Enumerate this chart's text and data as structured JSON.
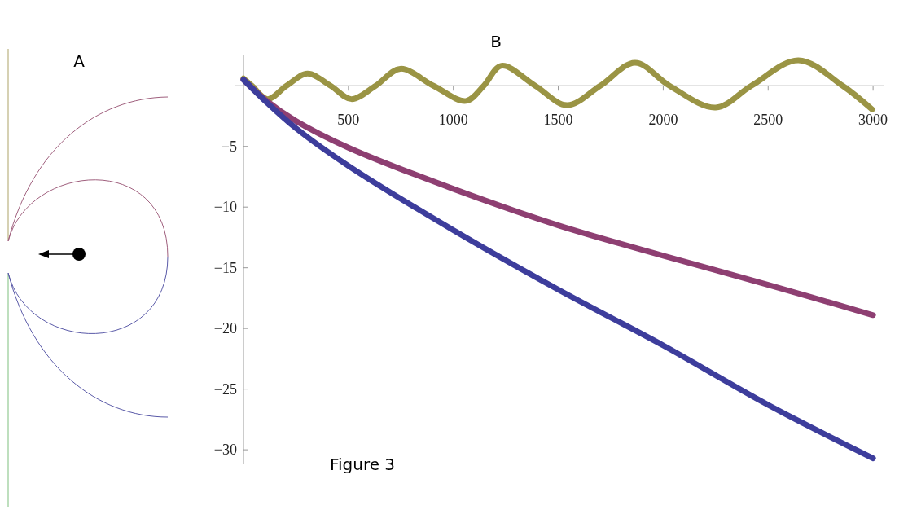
{
  "chart_data": {
    "type": "line",
    "title": "B",
    "annotations": [
      "A",
      "Figure 3"
    ],
    "xlim": [
      0,
      3050
    ],
    "ylim": [
      -31.2,
      2.5
    ],
    "xticks": [
      500,
      1000,
      1500,
      2000,
      2500,
      3000
    ],
    "yticks": [
      -5,
      -10,
      -15,
      -20,
      -25,
      -30
    ],
    "grid": false,
    "marker": "none",
    "line_style": "solid",
    "series": [
      {
        "color": "#9a9444",
        "x": [
          0,
          40,
          115,
          205,
          305,
          415,
          514,
          630,
          747,
          905,
          1060,
          1145,
          1229,
          1390,
          1542,
          1700,
          1866,
          2030,
          2250,
          2420,
          2644,
          2855,
          2996
        ],
        "values": [
          0.6,
          0,
          -1.1,
          0,
          1.0,
          0,
          -1.1,
          0,
          1.4,
          0,
          -1.25,
          0,
          1.65,
          0,
          -1.6,
          0,
          1.9,
          0,
          -1.8,
          0,
          2.1,
          0,
          -1.95
        ]
      },
      {
        "color": "#8e3f72",
        "x": [
          0,
          100,
          250,
          500,
          1000,
          1500,
          2000,
          2500,
          3000
        ],
        "values": [
          0.5,
          -1.1,
          -2.9,
          -5.1,
          -8.5,
          -11.5,
          -14.0,
          -16.4,
          -18.9
        ]
      },
      {
        "color": "#3d3d9c",
        "x": [
          0,
          100,
          250,
          500,
          1000,
          1500,
          2000,
          2500,
          3000
        ],
        "values": [
          0.5,
          -1.2,
          -3.5,
          -6.6,
          -11.9,
          -16.8,
          -21.4,
          -26.3,
          -30.7
        ]
      }
    ]
  }
}
